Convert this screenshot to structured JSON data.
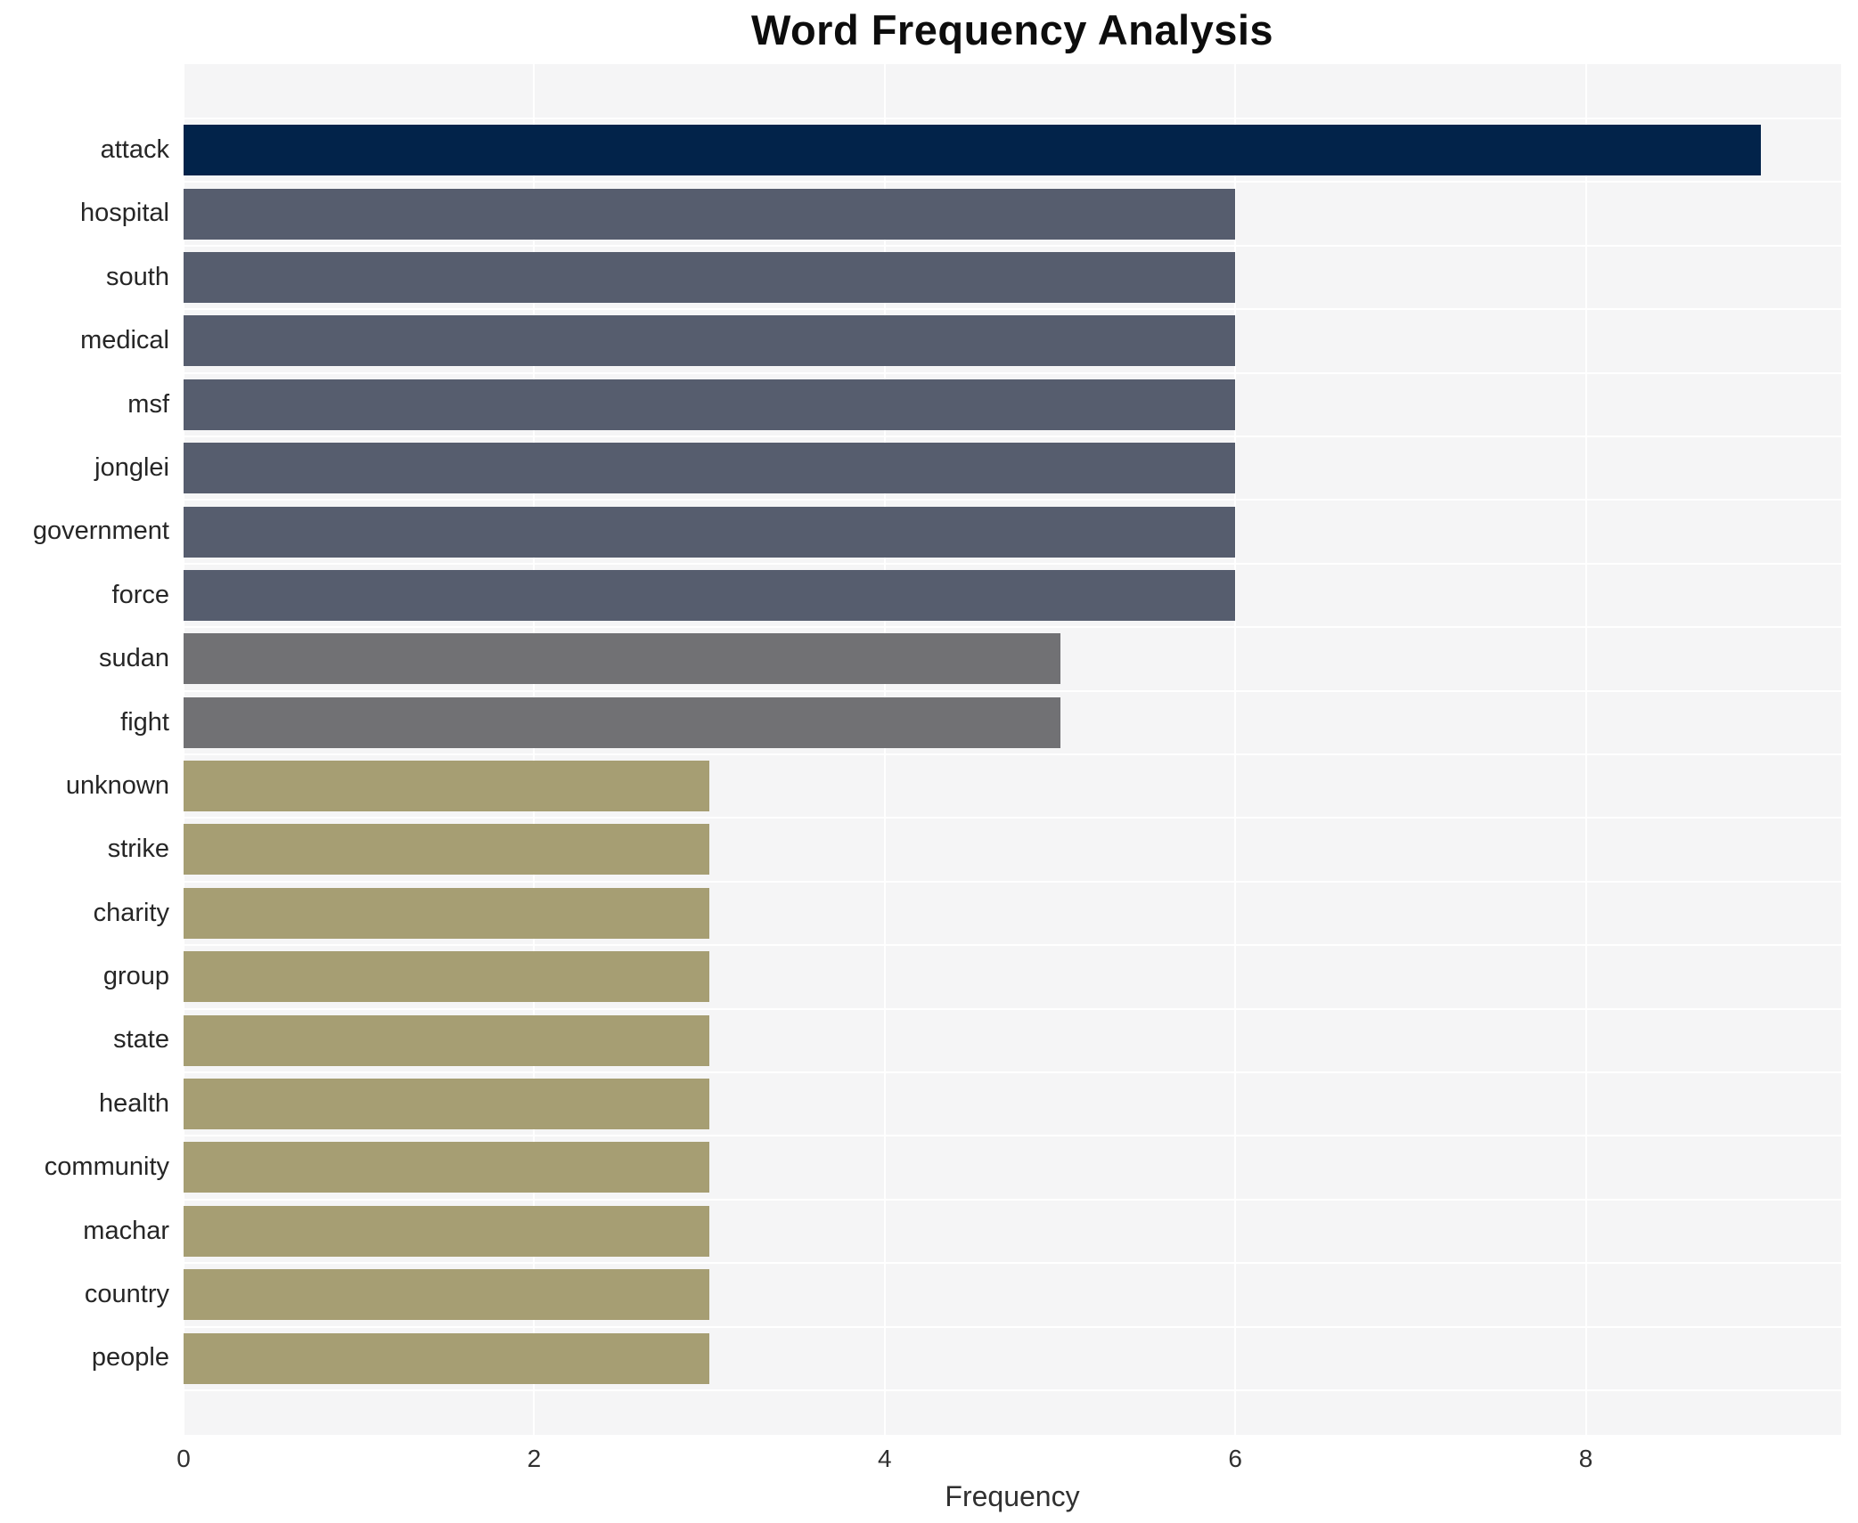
{
  "title": "Word Frequency Analysis",
  "chart_data": {
    "type": "bar",
    "orientation": "horizontal",
    "title": "Word Frequency Analysis",
    "xlabel": "Frequency",
    "ylabel": "",
    "categories": [
      "attack",
      "hospital",
      "south",
      "medical",
      "msf",
      "jonglei",
      "government",
      "force",
      "sudan",
      "fight",
      "unknown",
      "strike",
      "charity",
      "group",
      "state",
      "health",
      "community",
      "machar",
      "country",
      "people"
    ],
    "values": [
      9,
      6,
      6,
      6,
      6,
      6,
      6,
      6,
      5,
      5,
      3,
      3,
      3,
      3,
      3,
      3,
      3,
      3,
      3,
      3
    ],
    "bar_colors": [
      "#02234a",
      "#565d6e",
      "#565d6e",
      "#565d6e",
      "#565d6e",
      "#565d6e",
      "#565d6e",
      "#565d6e",
      "#717174",
      "#717174",
      "#a69e73",
      "#a69e73",
      "#a69e73",
      "#a69e73",
      "#a69e73",
      "#a69e73",
      "#a69e73",
      "#a69e73",
      "#a69e73",
      "#a69e73"
    ],
    "xticks": [
      0,
      2,
      4,
      6,
      8
    ],
    "xlim": [
      0,
      9.456
    ],
    "grid": "on",
    "legend": "none",
    "plot_background": "#f5f5f6",
    "gridline_color": "#ffffff",
    "colors": {
      "highest": "#02234a",
      "high": "#565d6e",
      "medium": "#717174",
      "low": "#a69e73"
    }
  }
}
